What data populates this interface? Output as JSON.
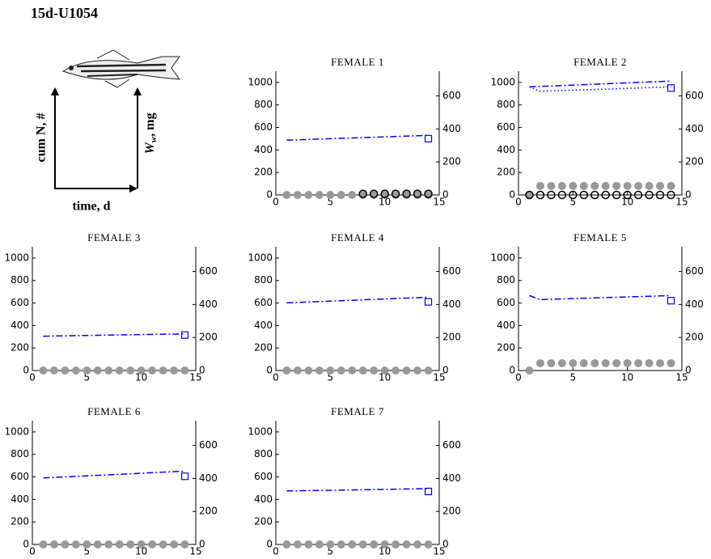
{
  "title": "15d-U1054",
  "legend": {
    "ylabel": "cum N, #",
    "y2label": {
      "main": "W",
      "sub": "w",
      "rest": ", mg"
    },
    "xlabel": "time, d"
  },
  "chart_data": [
    {
      "type": "line",
      "title": "FEMALE 1",
      "xlim": [
        0,
        15
      ],
      "xticks": [
        0,
        5,
        10,
        15
      ],
      "ylim": [
        0,
        1100
      ],
      "yticks": [
        0,
        200,
        400,
        600,
        800,
        1000
      ],
      "y2lim": [
        0,
        750
      ],
      "y2ticks": [
        0,
        200,
        400,
        600
      ],
      "series": [
        {
          "style": "filled-circle",
          "color": "#999999",
          "x": [
            1,
            2,
            3,
            4,
            5,
            6,
            7,
            8,
            9,
            10,
            11,
            12,
            13,
            14
          ],
          "values": [
            0,
            0,
            0,
            0,
            0,
            0,
            0,
            0,
            0,
            0,
            0,
            0,
            0,
            0
          ]
        },
        {
          "style": "open-circle",
          "color": "#000000",
          "x": [
            8,
            9,
            10,
            11,
            12,
            13,
            14
          ],
          "values": [
            10,
            10,
            10,
            10,
            10,
            10,
            10
          ]
        },
        {
          "style": "dash-dot",
          "color": "#0000ff",
          "axis": "y2",
          "x": [
            1,
            14
          ],
          "values": [
            332,
            361
          ]
        },
        {
          "style": "square",
          "color": "#0000ff",
          "axis": "y2",
          "x": [
            14
          ],
          "values": [
            341
          ]
        }
      ]
    },
    {
      "type": "line",
      "title": "FEMALE 2",
      "xlim": [
        0,
        15
      ],
      "xticks": [
        0,
        5,
        10,
        15
      ],
      "ylim": [
        0,
        1100
      ],
      "yticks": [
        0,
        200,
        400,
        600,
        800,
        1000
      ],
      "y2lim": [
        0,
        750
      ],
      "y2ticks": [
        0,
        200,
        400,
        600
      ],
      "series": [
        {
          "style": "filled-circle",
          "color": "#999999",
          "x": [
            1,
            2,
            3,
            4,
            5,
            6,
            7,
            8,
            9,
            10,
            11,
            12,
            13,
            14
          ],
          "values": [
            0,
            80,
            80,
            80,
            80,
            80,
            80,
            80,
            80,
            80,
            80,
            80,
            80,
            80
          ]
        },
        {
          "style": "open-circle",
          "color": "#000000",
          "x": [
            1,
            2,
            3,
            4,
            5,
            6,
            7,
            8,
            9,
            10,
            11,
            12,
            13,
            14
          ],
          "values": [
            0,
            0,
            0,
            0,
            0,
            0,
            0,
            0,
            0,
            0,
            0,
            0,
            0,
            0
          ]
        },
        {
          "style": "dash-dot",
          "color": "#0000ff",
          "axis": "y2",
          "x": [
            1,
            14
          ],
          "values": [
            655,
            690
          ]
        },
        {
          "style": "dotted",
          "color": "#0000ff",
          "axis": "y2",
          "x": [
            1,
            2,
            14
          ],
          "values": [
            655,
            628,
            655
          ]
        },
        {
          "style": "square",
          "color": "#0000ff",
          "axis": "y2",
          "x": [
            14
          ],
          "values": [
            648
          ]
        }
      ]
    },
    {
      "type": "line",
      "title": "FEMALE 3",
      "xlim": [
        0,
        15
      ],
      "xticks": [
        0,
        5,
        10,
        15
      ],
      "ylim": [
        0,
        1100
      ],
      "yticks": [
        0,
        200,
        400,
        600,
        800,
        1000
      ],
      "y2lim": [
        0,
        750
      ],
      "y2ticks": [
        0,
        200,
        400,
        600
      ],
      "series": [
        {
          "style": "filled-circle",
          "color": "#999999",
          "x": [
            1,
            2,
            3,
            4,
            5,
            6,
            7,
            8,
            9,
            10,
            11,
            12,
            13,
            14
          ],
          "values": [
            0,
            0,
            0,
            0,
            0,
            0,
            0,
            0,
            0,
            0,
            0,
            0,
            0,
            0
          ]
        },
        {
          "style": "dash-dot",
          "color": "#0000ff",
          "axis": "y2",
          "x": [
            1,
            14
          ],
          "values": [
            208,
            222
          ]
        },
        {
          "style": "square",
          "color": "#0000ff",
          "axis": "y2",
          "x": [
            14
          ],
          "values": [
            215
          ]
        }
      ]
    },
    {
      "type": "line",
      "title": "FEMALE 4",
      "xlim": [
        0,
        15
      ],
      "xticks": [
        0,
        5,
        10,
        15
      ],
      "ylim": [
        0,
        1100
      ],
      "yticks": [
        0,
        200,
        400,
        600,
        800,
        1000
      ],
      "y2lim": [
        0,
        750
      ],
      "y2ticks": [
        0,
        200,
        400,
        600
      ],
      "series": [
        {
          "style": "filled-circle",
          "color": "#999999",
          "x": [
            1,
            2,
            3,
            4,
            5,
            6,
            7,
            8,
            9,
            10,
            11,
            12,
            13,
            14
          ],
          "values": [
            0,
            0,
            0,
            0,
            0,
            0,
            0,
            0,
            0,
            0,
            0,
            0,
            0,
            0
          ]
        },
        {
          "style": "dash-dot",
          "color": "#0000ff",
          "axis": "y2",
          "x": [
            1,
            14
          ],
          "values": [
            410,
            444
          ]
        },
        {
          "style": "square",
          "color": "#0000ff",
          "axis": "y2",
          "x": [
            14
          ],
          "values": [
            416
          ]
        }
      ]
    },
    {
      "type": "line",
      "title": "FEMALE 5",
      "xlim": [
        0,
        15
      ],
      "xticks": [
        0,
        5,
        10,
        15
      ],
      "ylim": [
        0,
        1100
      ],
      "yticks": [
        0,
        200,
        400,
        600,
        800,
        1000
      ],
      "y2lim": [
        0,
        750
      ],
      "y2ticks": [
        0,
        200,
        400,
        600
      ],
      "series": [
        {
          "style": "filled-circle",
          "color": "#999999",
          "x": [
            1,
            2,
            3,
            4,
            5,
            6,
            7,
            8,
            9,
            10,
            11,
            12,
            13,
            14
          ],
          "values": [
            0,
            65,
            65,
            65,
            65,
            65,
            65,
            65,
            65,
            65,
            65,
            65,
            65,
            65
          ]
        },
        {
          "style": "dash-dot",
          "color": "#0000ff",
          "axis": "y2",
          "x": [
            1,
            2,
            14
          ],
          "values": [
            454,
            430,
            454
          ]
        },
        {
          "style": "square",
          "color": "#0000ff",
          "axis": "y2",
          "x": [
            14
          ],
          "values": [
            423
          ]
        }
      ]
    },
    {
      "type": "line",
      "title": "FEMALE 6",
      "xlim": [
        0,
        15
      ],
      "xticks": [
        0,
        5,
        10,
        15
      ],
      "ylim": [
        0,
        1100
      ],
      "yticks": [
        0,
        200,
        400,
        600,
        800,
        1000
      ],
      "y2lim": [
        0,
        750
      ],
      "y2ticks": [
        0,
        200,
        400,
        600
      ],
      "series": [
        {
          "style": "filled-circle",
          "color": "#999999",
          "x": [
            1,
            2,
            3,
            4,
            5,
            6,
            7,
            8,
            9,
            10,
            11,
            12,
            13,
            14
          ],
          "values": [
            0,
            0,
            0,
            0,
            0,
            0,
            0,
            0,
            0,
            0,
            0,
            0,
            0,
            0
          ]
        },
        {
          "style": "dash-dot",
          "color": "#0000ff",
          "axis": "y2",
          "x": [
            1,
            14
          ],
          "values": [
            403,
            444
          ]
        },
        {
          "style": "square",
          "color": "#0000ff",
          "axis": "y2",
          "x": [
            14
          ],
          "values": [
            413
          ]
        }
      ]
    },
    {
      "type": "line",
      "title": "FEMALE 7",
      "xlim": [
        0,
        15
      ],
      "xticks": [
        0,
        5,
        10,
        15
      ],
      "ylim": [
        0,
        1100
      ],
      "yticks": [
        0,
        200,
        400,
        600,
        800,
        1000
      ],
      "y2lim": [
        0,
        750
      ],
      "y2ticks": [
        0,
        200,
        400,
        600
      ],
      "series": [
        {
          "style": "filled-circle",
          "color": "#999999",
          "x": [
            1,
            2,
            3,
            4,
            5,
            6,
            7,
            8,
            9,
            10,
            11,
            12,
            13,
            14
          ],
          "values": [
            0,
            0,
            0,
            0,
            0,
            0,
            0,
            0,
            0,
            0,
            0,
            0,
            0,
            0
          ]
        },
        {
          "style": "dash-dot",
          "color": "#0000ff",
          "axis": "y2",
          "x": [
            1,
            14
          ],
          "values": [
            324,
            338
          ]
        },
        {
          "style": "square",
          "color": "#0000ff",
          "axis": "y2",
          "x": [
            14
          ],
          "values": [
            321
          ]
        }
      ]
    }
  ]
}
